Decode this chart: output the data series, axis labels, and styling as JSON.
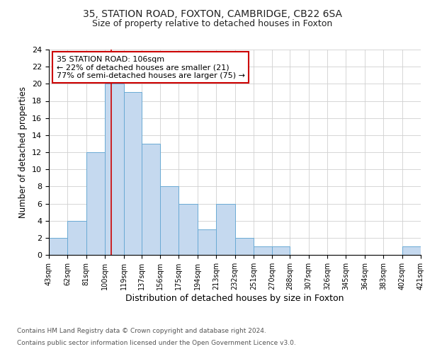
{
  "title_line1": "35, STATION ROAD, FOXTON, CAMBRIDGE, CB22 6SA",
  "title_line2": "Size of property relative to detached houses in Foxton",
  "xlabel": "Distribution of detached houses by size in Foxton",
  "ylabel": "Number of detached properties",
  "bin_labels": [
    "43sqm",
    "62sqm",
    "81sqm",
    "100sqm",
    "119sqm",
    "137sqm",
    "156sqm",
    "175sqm",
    "194sqm",
    "213sqm",
    "232sqm",
    "251sqm",
    "270sqm",
    "288sqm",
    "307sqm",
    "326sqm",
    "345sqm",
    "364sqm",
    "383sqm",
    "402sqm",
    "421sqm"
  ],
  "bin_edges": [
    43,
    62,
    81,
    100,
    119,
    137,
    156,
    175,
    194,
    213,
    232,
    251,
    270,
    288,
    307,
    326,
    345,
    364,
    383,
    402,
    421
  ],
  "bar_heights": [
    2,
    4,
    12,
    20,
    19,
    13,
    8,
    6,
    3,
    6,
    2,
    1,
    1,
    0,
    0,
    0,
    0,
    0,
    0,
    1,
    0
  ],
  "bar_color": "#c5d9ef",
  "bar_edge_color": "#6aaad4",
  "property_size": 106,
  "vline_color": "#cc0000",
  "annotation_title": "35 STATION ROAD: 106sqm",
  "annotation_line1": "← 22% of detached houses are smaller (21)",
  "annotation_line2": "77% of semi-detached houses are larger (75) →",
  "annotation_box_color": "#cc0000",
  "ylim": [
    0,
    24
  ],
  "yticks": [
    0,
    2,
    4,
    6,
    8,
    10,
    12,
    14,
    16,
    18,
    20,
    22,
    24
  ],
  "background_color": "#ffffff",
  "footer_line1": "Contains HM Land Registry data © Crown copyright and database right 2024.",
  "footer_line2": "Contains public sector information licensed under the Open Government Licence v3.0."
}
